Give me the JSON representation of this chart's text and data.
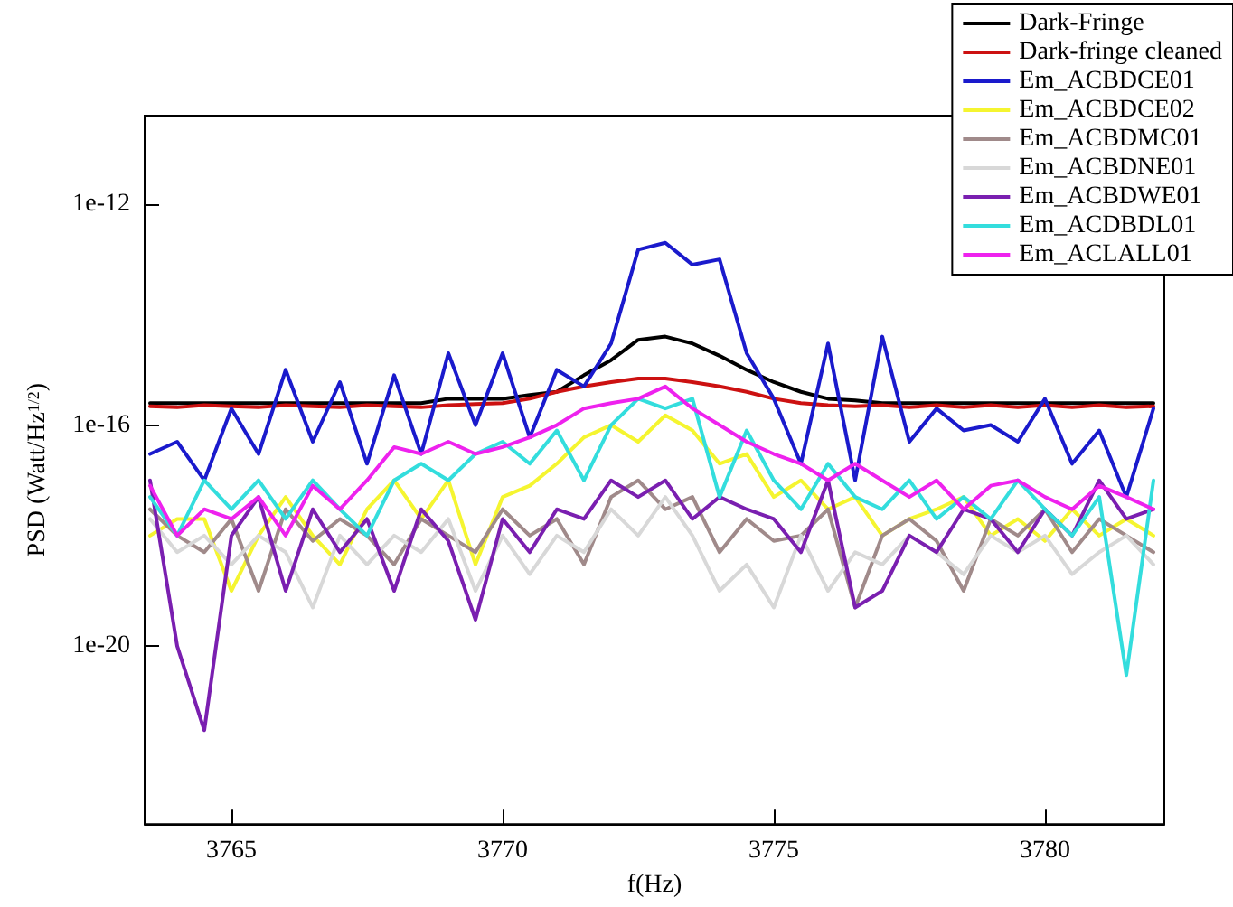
{
  "chart_data": {
    "type": "line",
    "xlabel": "f(Hz)",
    "ylabel": "PSD (Watt/Hz$^{1/2}$)",
    "log": "y",
    "grid": false,
    "legend": "top right",
    "marker": "none",
    "line_style": "solid",
    "xlim": [
      3763.4,
      3782.2
    ],
    "xticks": [
      3765,
      3770,
      3775,
      3780
    ],
    "ylim": [
      6e-24,
      4e-11
    ],
    "yticks": [
      {
        "value": 1e-12,
        "label": "1e-12"
      },
      {
        "value": 1e-16,
        "label": "1e-16"
      },
      {
        "value": 1e-20,
        "label": "1e-20"
      }
    ],
    "x": [
      3763.5,
      3764,
      3764.5,
      3765,
      3765.5,
      3766,
      3766.5,
      3767,
      3767.5,
      3768,
      3768.5,
      3769,
      3769.5,
      3770,
      3770.5,
      3771,
      3771.5,
      3772,
      3772.5,
      3773,
      3773.5,
      3774,
      3774.5,
      3775,
      3775.5,
      3776,
      3776.5,
      3777,
      3777.5,
      3778,
      3778.5,
      3779,
      3779.5,
      3780,
      3780.5,
      3781,
      3781.5,
      3782
    ],
    "series": [
      {
        "name": "Dark-Fringe",
        "color": "#000000",
        "values": [
          2.5e-16,
          2.5e-16,
          2.5e-16,
          2.5e-16,
          2.5e-16,
          2.5e-16,
          2.5e-16,
          2.5e-16,
          2.5e-16,
          2.5e-16,
          2.5e-16,
          3e-16,
          3e-16,
          3e-16,
          3.5e-16,
          4e-16,
          8e-16,
          1.5e-15,
          3.5e-15,
          4e-15,
          3e-15,
          1.8e-15,
          1e-15,
          6e-16,
          4e-16,
          3e-16,
          2.8e-16,
          2.5e-16,
          2.5e-16,
          2.5e-16,
          2.5e-16,
          2.5e-16,
          2.5e-16,
          2.5e-16,
          2.5e-16,
          2.5e-16,
          2.5e-16,
          2.5e-16
        ]
      },
      {
        "name": "Dark-fringe cleaned",
        "color": "#cc1111",
        "values": [
          2.2e-16,
          2.1e-16,
          2.3e-16,
          2.2e-16,
          2.1e-16,
          2.3e-16,
          2.2e-16,
          2.1e-16,
          2.3e-16,
          2.2e-16,
          2.1e-16,
          2.3e-16,
          2.4e-16,
          2.5e-16,
          3e-16,
          4e-16,
          5e-16,
          6e-16,
          7e-16,
          7e-16,
          6e-16,
          5e-16,
          4e-16,
          3e-16,
          2.5e-16,
          2.3e-16,
          2.2e-16,
          2.3e-16,
          2.1e-16,
          2.3e-16,
          2.1e-16,
          2.3e-16,
          2.1e-16,
          2.3e-16,
          2.1e-16,
          2.3e-16,
          2.1e-16,
          2.2e-16
        ]
      },
      {
        "name": "Em_ACBDCE01",
        "color": "#1a1acc",
        "values": [
          3e-17,
          5e-17,
          1e-17,
          2e-16,
          3e-17,
          1e-15,
          5e-17,
          6e-16,
          2e-17,
          8e-16,
          3e-17,
          2e-15,
          1e-16,
          2e-15,
          6e-17,
          1e-15,
          5e-16,
          3e-15,
          1.5e-13,
          2e-13,
          8e-14,
          1e-13,
          2e-15,
          3e-16,
          2e-17,
          3e-15,
          1e-17,
          4e-15,
          5e-17,
          2e-16,
          8e-17,
          1e-16,
          5e-17,
          3e-16,
          2e-17,
          8e-17,
          5e-18,
          2e-16
        ]
      },
      {
        "name": "Em_ACBDCE02",
        "color": "#f5f530",
        "values": [
          1e-18,
          2e-18,
          2e-18,
          1e-19,
          1e-18,
          5e-18,
          1e-18,
          3e-19,
          3e-18,
          1e-17,
          2e-18,
          1e-17,
          3e-19,
          5e-18,
          8e-18,
          2e-17,
          6e-17,
          1e-16,
          5e-17,
          1.5e-16,
          8e-17,
          2e-17,
          3e-17,
          5e-18,
          1e-17,
          3e-18,
          5e-18,
          1e-18,
          2e-18,
          3e-18,
          5e-18,
          1e-18,
          2e-18,
          8e-19,
          3e-18,
          1e-18,
          2e-18,
          1e-18
        ]
      },
      {
        "name": "Em_ACBDMC01",
        "color": "#a08a8a",
        "values": [
          3e-18,
          1e-18,
          5e-19,
          2e-18,
          1e-19,
          3e-18,
          8e-19,
          2e-18,
          1e-18,
          3e-19,
          2e-18,
          1e-18,
          5e-19,
          3e-18,
          1e-18,
          2e-18,
          3e-19,
          5e-18,
          1e-17,
          3e-18,
          5e-18,
          5e-19,
          2e-18,
          8e-19,
          1e-18,
          3e-18,
          5e-20,
          1e-18,
          2e-18,
          8e-19,
          1e-19,
          2e-18,
          1e-18,
          3e-18,
          5e-19,
          2e-18,
          1e-18,
          5e-19
        ]
      },
      {
        "name": "Em_ACBDNE01",
        "color": "#d8d8d8",
        "values": [
          2e-18,
          5e-19,
          1e-18,
          3e-19,
          1e-18,
          5e-19,
          5e-20,
          1e-18,
          3e-19,
          1e-18,
          5e-19,
          2e-18,
          1e-19,
          1e-18,
          2e-19,
          1e-18,
          5e-19,
          3e-18,
          1e-18,
          5e-18,
          1e-18,
          1e-19,
          3e-19,
          5e-20,
          1e-18,
          1e-19,
          5e-19,
          3e-19,
          1e-18,
          5e-19,
          2e-19,
          1e-18,
          5e-19,
          1e-18,
          2e-19,
          5e-19,
          1e-18,
          3e-19
        ]
      },
      {
        "name": "Em_ACBDWE01",
        "color": "#7a1fb0",
        "values": [
          1e-17,
          1e-20,
          3e-22,
          1e-18,
          5e-18,
          1e-19,
          3e-18,
          5e-19,
          2e-18,
          1e-19,
          3e-18,
          8e-19,
          3e-20,
          2e-18,
          5e-19,
          3e-18,
          2e-18,
          1e-17,
          5e-18,
          1e-17,
          2e-18,
          5e-18,
          3e-18,
          2e-18,
          5e-19,
          1e-17,
          5e-20,
          1e-19,
          1e-18,
          5e-19,
          3e-18,
          2e-18,
          5e-19,
          3e-18,
          1e-18,
          1e-17,
          2e-18,
          3e-18
        ]
      },
      {
        "name": "Em_ACDBDL01",
        "color": "#33dddd",
        "values": [
          5e-18,
          1e-18,
          1e-17,
          3e-18,
          1e-17,
          2e-18,
          1e-17,
          3e-18,
          1e-18,
          1e-17,
          2e-17,
          1e-17,
          3e-17,
          5e-17,
          2e-17,
          8e-17,
          1e-17,
          1e-16,
          3e-16,
          2e-16,
          3e-16,
          5e-18,
          8e-17,
          1e-17,
          3e-18,
          2e-17,
          5e-18,
          3e-18,
          1e-17,
          2e-18,
          5e-18,
          2e-18,
          1e-17,
          3e-18,
          1e-18,
          5e-18,
          3e-21,
          1e-17
        ]
      },
      {
        "name": "Em_ACLALL01",
        "color": "#ee22ee",
        "values": [
          8e-18,
          1e-18,
          3e-18,
          2e-18,
          5e-18,
          1e-18,
          8e-18,
          3e-18,
          1e-17,
          4e-17,
          3e-17,
          5e-17,
          3e-17,
          4e-17,
          6e-17,
          1e-16,
          2e-16,
          2.5e-16,
          3e-16,
          5e-16,
          2e-16,
          1e-16,
          5e-17,
          3e-17,
          2e-17,
          1e-17,
          2e-17,
          1e-17,
          5e-18,
          1e-17,
          3e-18,
          8e-18,
          1e-17,
          5e-18,
          3e-18,
          8e-18,
          5e-18,
          3e-18
        ]
      }
    ]
  }
}
